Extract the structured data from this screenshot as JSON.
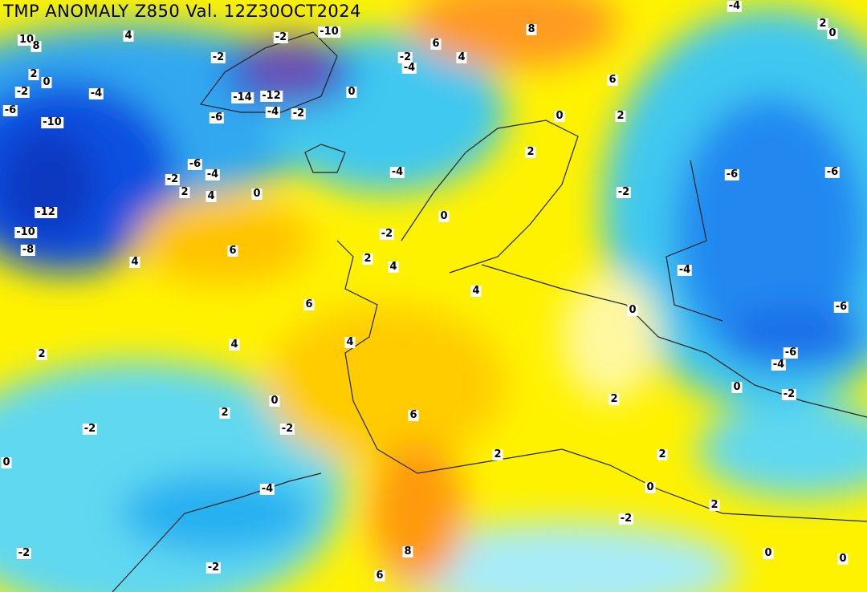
{
  "header": {
    "title": "TMP ANOMALY Z850 Val. 12Z30OCT2024"
  },
  "contour_labels": [
    "10",
    "4",
    "8",
    "-2",
    "-2",
    "-10",
    "6",
    "8",
    "-4",
    "2",
    "0",
    "2",
    "0",
    "-2",
    "4",
    "-4",
    "-2",
    "-4",
    "-14",
    "-12",
    "0",
    "6",
    "-6",
    "-4",
    "-2",
    "-6",
    "0",
    "2",
    "-10",
    "2",
    "-6",
    "-4",
    "-2",
    "-4",
    "-6",
    "-6",
    "2",
    "4",
    "0",
    "-2",
    "-12",
    "0",
    "-10",
    "-8",
    "-2",
    "6",
    "4",
    "2",
    "4",
    "-4",
    "4",
    "6",
    "0",
    "-6",
    "2",
    "4",
    "4",
    "-6",
    "-4",
    "0",
    "-2",
    "0",
    "2",
    "6",
    "2",
    "-2",
    "-2",
    "0",
    "2",
    "2",
    "-4",
    "0",
    "2",
    "-2",
    "-2",
    "8",
    "0",
    "0",
    "-2",
    "6"
  ]
}
